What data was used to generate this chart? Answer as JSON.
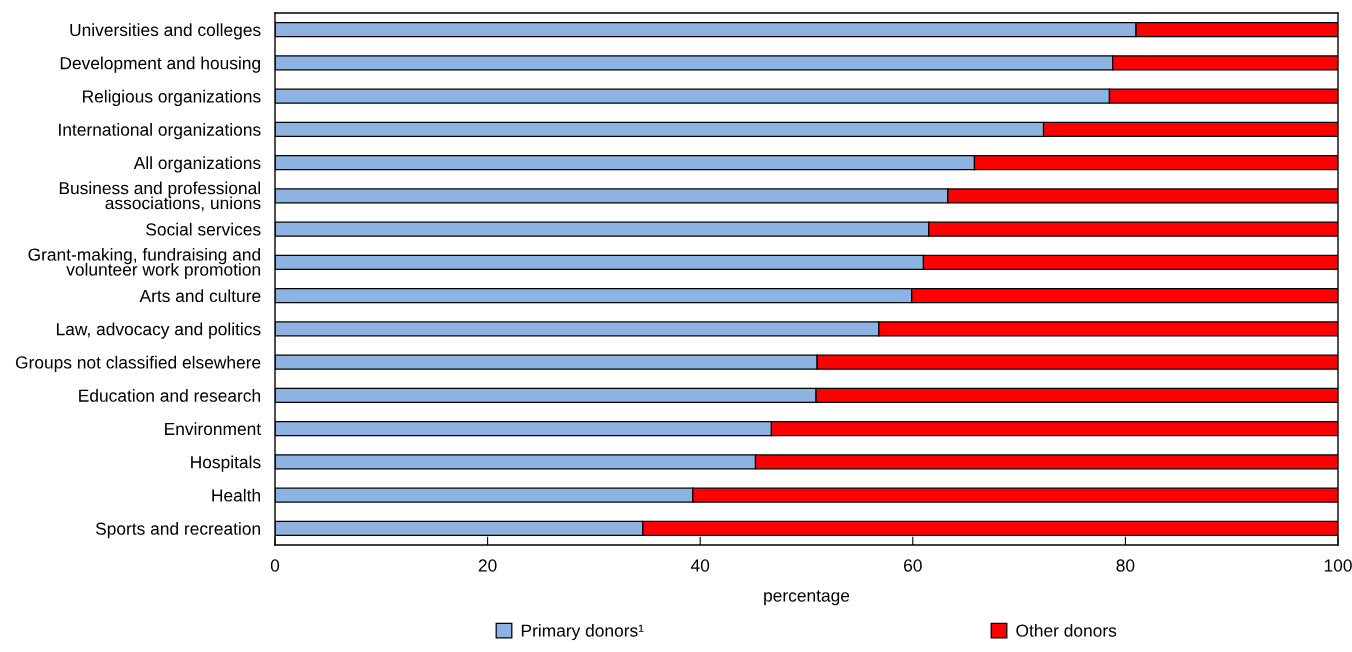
{
  "chart_data": {
    "type": "bar",
    "orientation": "horizontal",
    "stacked": true,
    "xlabel": "percentage",
    "categories": [
      "Universities and colleges",
      "Development and housing",
      "Religious organizations",
      "International organizations",
      "All organizations",
      "Business and professional\nassociations, unions",
      "Social services",
      "Grant-making, fundraising and\nvolunteer work promotion",
      "Arts and culture",
      "Law, advocacy and politics",
      "Groups not classified elsewhere",
      "Education and research",
      "Environment",
      "Hospitals",
      "Health",
      "Sports and recreation"
    ],
    "series": [
      {
        "name": "Primary donors¹",
        "color": "#8db3e2",
        "values": [
          81.0,
          78.8,
          78.5,
          72.3,
          65.8,
          63.3,
          61.5,
          61.0,
          59.9,
          56.8,
          51.0,
          50.9,
          46.7,
          45.2,
          39.3,
          34.6
        ]
      },
      {
        "name": "Other donors",
        "color": "#ff0000",
        "values": [
          19.0,
          21.2,
          21.5,
          27.7,
          34.2,
          36.7,
          38.5,
          39.0,
          40.1,
          43.2,
          49.0,
          49.1,
          53.3,
          54.8,
          60.7,
          65.4
        ]
      }
    ],
    "xlim": [
      0,
      100
    ],
    "xticks": [
      0,
      20,
      40,
      60,
      80,
      100
    ],
    "grid": false,
    "legend": "bottom"
  }
}
